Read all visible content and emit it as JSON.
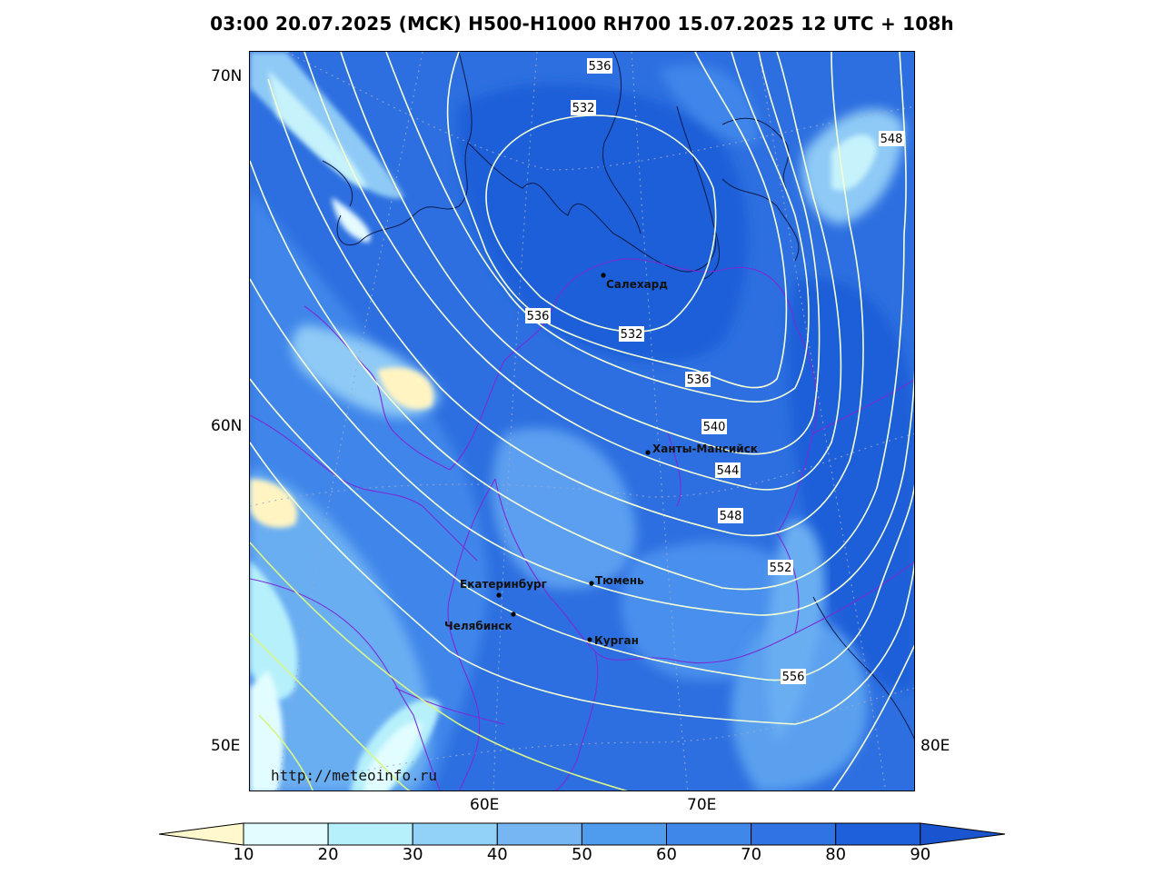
{
  "title": "03:00 20.07.2025 (MCK) H500-H1000 RH700 15.07.2025 12 UTC + 108h",
  "axes": {
    "lat_labels": [
      "70N",
      "60N",
      "50E"
    ],
    "lon_labels": [
      "60E",
      "70E",
      "80E"
    ]
  },
  "cities": [
    {
      "name": "Салехард"
    },
    {
      "name": "Ханты-Мансийск"
    },
    {
      "name": "Екатеринбург"
    },
    {
      "name": "Тюмень"
    },
    {
      "name": "Челябинск"
    },
    {
      "name": "Курган"
    }
  ],
  "contour_labels": [
    "536",
    "532",
    "548",
    "536",
    "532",
    "536",
    "540",
    "544",
    "548",
    "552",
    "556"
  ],
  "watermark": "http://meteoinfo.ru",
  "colorbar": {
    "ticks": [
      "10",
      "20",
      "30",
      "40",
      "50",
      "60",
      "70",
      "80",
      "90"
    ],
    "colors": [
      "#fff8cc",
      "#e2fdff",
      "#b6f0fb",
      "#93d2f8",
      "#76b7f3",
      "#4f9cef",
      "#3f88ea",
      "#2f74e2",
      "#1e60dc",
      "#1a55cf"
    ]
  },
  "field_colors": {
    "base": "#2d6fe0",
    "dark": "#1f5fd8",
    "medium": "#4e92ec",
    "light": "#8fcaf6",
    "pale": "#c6f2fb",
    "dry": "#fff4c2",
    "contour": "#f4ffd6",
    "contour_yellow": "#d8f58c",
    "border": "#7a2bd6",
    "coast": "#0b1a4a"
  }
}
